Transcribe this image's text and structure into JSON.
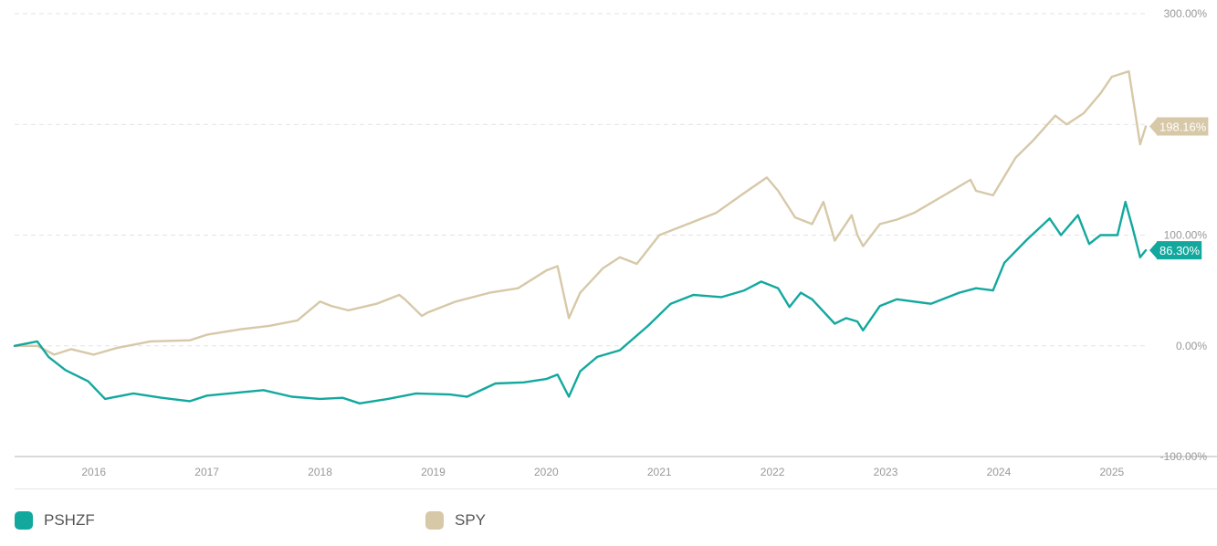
{
  "chart_data": {
    "type": "line",
    "y_unit": "%",
    "ylim": [
      -100,
      300
    ],
    "y_ticks": [
      -100,
      0,
      100,
      200,
      300
    ],
    "y_tick_labels": [
      "-100.00%",
      "0.00%",
      "100.00%",
      "",
      "300.00%"
    ],
    "x_range": [
      2015.3,
      2025.3
    ],
    "x_ticks": [
      2016,
      2017,
      2018,
      2019,
      2020,
      2021,
      2022,
      2023,
      2024,
      2025
    ],
    "x_tick_labels": [
      "2016",
      "2017",
      "2018",
      "2019",
      "2020",
      "2021",
      "2022",
      "2023",
      "2024",
      "2025"
    ],
    "grid": true,
    "legend_position": "bottom",
    "series": [
      {
        "name": "PSHZF",
        "color": "#13a89e",
        "end_label": "86.30%",
        "points": [
          [
            2015.3,
            0
          ],
          [
            2015.5,
            4
          ],
          [
            2015.6,
            -10
          ],
          [
            2015.75,
            -22
          ],
          [
            2015.95,
            -32
          ],
          [
            2016.1,
            -48
          ],
          [
            2016.35,
            -43
          ],
          [
            2016.6,
            -47
          ],
          [
            2016.85,
            -50
          ],
          [
            2017.0,
            -45
          ],
          [
            2017.3,
            -42
          ],
          [
            2017.5,
            -40
          ],
          [
            2017.75,
            -46
          ],
          [
            2018.0,
            -48
          ],
          [
            2018.2,
            -47
          ],
          [
            2018.35,
            -52
          ],
          [
            2018.6,
            -48
          ],
          [
            2018.85,
            -43
          ],
          [
            2019.15,
            -44
          ],
          [
            2019.3,
            -46
          ],
          [
            2019.55,
            -34
          ],
          [
            2019.8,
            -33
          ],
          [
            2020.0,
            -30
          ],
          [
            2020.1,
            -26
          ],
          [
            2020.2,
            -46
          ],
          [
            2020.3,
            -23
          ],
          [
            2020.45,
            -10
          ],
          [
            2020.65,
            -4
          ],
          [
            2020.9,
            18
          ],
          [
            2021.1,
            38
          ],
          [
            2021.3,
            46
          ],
          [
            2021.55,
            44
          ],
          [
            2021.75,
            50
          ],
          [
            2021.9,
            58
          ],
          [
            2022.05,
            52
          ],
          [
            2022.15,
            35
          ],
          [
            2022.25,
            48
          ],
          [
            2022.35,
            42
          ],
          [
            2022.55,
            20
          ],
          [
            2022.65,
            25
          ],
          [
            2022.75,
            22
          ],
          [
            2022.8,
            14
          ],
          [
            2022.95,
            36
          ],
          [
            2023.1,
            42
          ],
          [
            2023.4,
            38
          ],
          [
            2023.65,
            48
          ],
          [
            2023.8,
            52
          ],
          [
            2023.95,
            50
          ],
          [
            2024.05,
            75
          ],
          [
            2024.25,
            96
          ],
          [
            2024.45,
            115
          ],
          [
            2024.55,
            100
          ],
          [
            2024.7,
            118
          ],
          [
            2024.8,
            92
          ],
          [
            2024.9,
            100
          ],
          [
            2025.05,
            100
          ],
          [
            2025.12,
            130
          ],
          [
            2025.18,
            108
          ],
          [
            2025.25,
            80
          ],
          [
            2025.3,
            86.3
          ]
        ]
      },
      {
        "name": "SPY",
        "color": "#d7c8a8",
        "end_label": "198.16%",
        "points": [
          [
            2015.3,
            0
          ],
          [
            2015.5,
            0
          ],
          [
            2015.65,
            -8
          ],
          [
            2015.8,
            -3
          ],
          [
            2016.0,
            -8
          ],
          [
            2016.2,
            -2
          ],
          [
            2016.5,
            4
          ],
          [
            2016.85,
            5
          ],
          [
            2017.0,
            10
          ],
          [
            2017.3,
            15
          ],
          [
            2017.55,
            18
          ],
          [
            2017.8,
            23
          ],
          [
            2018.0,
            40
          ],
          [
            2018.1,
            36
          ],
          [
            2018.25,
            32
          ],
          [
            2018.5,
            38
          ],
          [
            2018.7,
            46
          ],
          [
            2018.75,
            42
          ],
          [
            2018.9,
            27
          ],
          [
            2018.95,
            30
          ],
          [
            2019.2,
            40
          ],
          [
            2019.5,
            48
          ],
          [
            2019.75,
            52
          ],
          [
            2020.0,
            68
          ],
          [
            2020.1,
            72
          ],
          [
            2020.2,
            25
          ],
          [
            2020.3,
            48
          ],
          [
            2020.5,
            70
          ],
          [
            2020.65,
            80
          ],
          [
            2020.8,
            74
          ],
          [
            2021.0,
            100
          ],
          [
            2021.25,
            110
          ],
          [
            2021.5,
            120
          ],
          [
            2021.75,
            138
          ],
          [
            2021.95,
            152
          ],
          [
            2022.05,
            140
          ],
          [
            2022.2,
            116
          ],
          [
            2022.35,
            110
          ],
          [
            2022.45,
            130
          ],
          [
            2022.55,
            95
          ],
          [
            2022.7,
            118
          ],
          [
            2022.75,
            100
          ],
          [
            2022.8,
            90
          ],
          [
            2022.95,
            110
          ],
          [
            2023.1,
            114
          ],
          [
            2023.25,
            120
          ],
          [
            2023.5,
            135
          ],
          [
            2023.75,
            150
          ],
          [
            2023.8,
            140
          ],
          [
            2023.95,
            136
          ],
          [
            2024.15,
            170
          ],
          [
            2024.3,
            185
          ],
          [
            2024.5,
            208
          ],
          [
            2024.6,
            200
          ],
          [
            2024.75,
            210
          ],
          [
            2024.9,
            228
          ],
          [
            2025.0,
            243
          ],
          [
            2025.15,
            248
          ],
          [
            2025.25,
            182
          ],
          [
            2025.3,
            198.16
          ]
        ]
      }
    ]
  }
}
